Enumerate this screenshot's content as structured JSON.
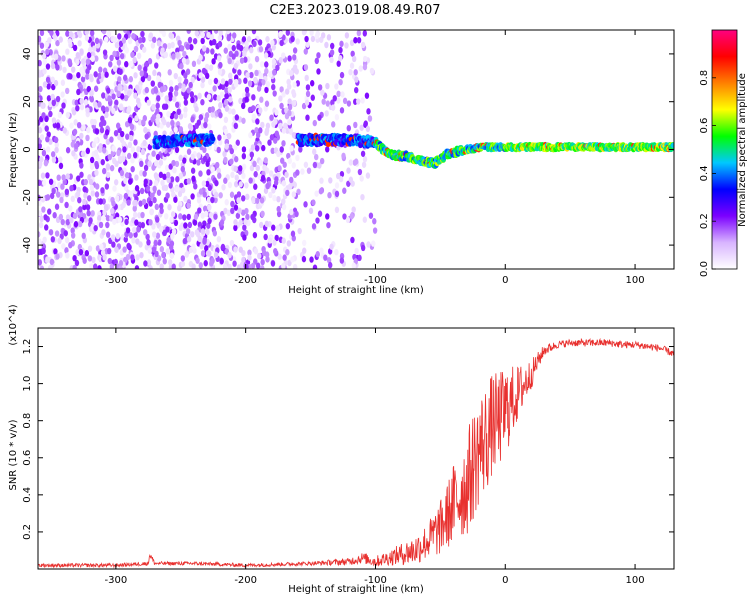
{
  "figure_title": "C2E3.2023.019.08.49.R07",
  "chart_data": [
    {
      "type": "heatmap",
      "title": "C2E3.2023.019.08.49.R07",
      "xlabel": "Height of straight line (km)",
      "ylabel": "Frequency (Hz)",
      "xlim": [
        -360,
        130
      ],
      "ylim": [
        -50,
        50
      ],
      "xticks": [
        -300,
        -200,
        -100,
        0,
        100
      ],
      "yticks": [
        -40,
        -20,
        0,
        20,
        40
      ],
      "colorbar": {
        "label": "Normalized spectral amplitude",
        "range": [
          0.0,
          1.0
        ],
        "ticks": [
          0.0,
          0.2,
          0.4,
          0.6,
          0.8
        ],
        "colormap": [
          "#ffffff",
          "#d8b4ff",
          "#7b00ff",
          "#0000ff",
          "#00c8ff",
          "#00ff00",
          "#ffff00",
          "#ff8000",
          "#ff0000",
          "#ff0080"
        ]
      },
      "features": [
        {
          "name": "scattered noise",
          "x_range": [
            -360,
            -100
          ],
          "y_range": [
            -50,
            50
          ],
          "amplitude": 0.1
        },
        {
          "name": "signal trace",
          "points": [
            [
              -270,
              3
            ],
            [
              -240,
              4
            ],
            [
              -155,
              4
            ],
            [
              -120,
              4
            ],
            [
              -100,
              3
            ],
            [
              -90,
              -2
            ],
            [
              -75,
              -3
            ],
            [
              -55,
              -6
            ],
            [
              -45,
              -2
            ],
            [
              -30,
              0
            ],
            [
              -15,
              1
            ],
            [
              0,
              1
            ],
            [
              20,
              1
            ],
            [
              60,
              1
            ],
            [
              100,
              1
            ],
            [
              130,
              1
            ]
          ],
          "amplitude_range": [
            0.3,
            0.9
          ]
        }
      ]
    },
    {
      "type": "line",
      "xlabel": "Height of straight line (km)",
      "ylabel": "SNR (10 * v/v)",
      "y_multiplier": "(x10^4)",
      "xlim": [
        -360,
        130
      ],
      "ylim": [
        0,
        1.3
      ],
      "xticks": [
        -300,
        -200,
        -100,
        0,
        100
      ],
      "yticks": [
        0.2,
        0.4,
        0.6,
        0.8,
        1.0,
        1.2
      ],
      "series": [
        {
          "color": "#e8302e",
          "x": [
            -360,
            -330,
            -300,
            -275,
            -274,
            -270,
            -240,
            -200,
            -150,
            -120,
            -110,
            -100,
            -90,
            -80,
            -70,
            -60,
            -50,
            -45,
            -40,
            -35,
            -30,
            -25,
            -20,
            -15,
            -10,
            -5,
            0,
            5,
            10,
            15,
            20,
            25,
            30,
            40,
            50,
            60,
            70,
            80,
            90,
            100,
            110,
            120,
            130
          ],
          "values": [
            0.02,
            0.02,
            0.02,
            0.03,
            0.08,
            0.03,
            0.03,
            0.02,
            0.03,
            0.04,
            0.06,
            0.04,
            0.06,
            0.08,
            0.1,
            0.15,
            0.22,
            0.28,
            0.35,
            0.4,
            0.45,
            0.55,
            0.65,
            0.7,
            0.78,
            0.8,
            0.85,
            0.9,
            0.95,
            1.0,
            1.05,
            1.12,
            1.18,
            1.21,
            1.22,
            1.22,
            1.22,
            1.22,
            1.21,
            1.21,
            1.2,
            1.19,
            1.16
          ],
          "noise_amplitude": [
            0.01,
            0.01,
            0.01,
            0.01,
            0.02,
            0.01,
            0.01,
            0.01,
            0.01,
            0.02,
            0.03,
            0.03,
            0.04,
            0.06,
            0.08,
            0.1,
            0.15,
            0.18,
            0.22,
            0.25,
            0.28,
            0.3,
            0.3,
            0.3,
            0.28,
            0.26,
            0.25,
            0.2,
            0.15,
            0.12,
            0.08,
            0.05,
            0.03,
            0.02,
            0.02,
            0.02,
            0.02,
            0.02,
            0.02,
            0.02,
            0.02,
            0.02,
            0.02
          ]
        }
      ]
    }
  ]
}
